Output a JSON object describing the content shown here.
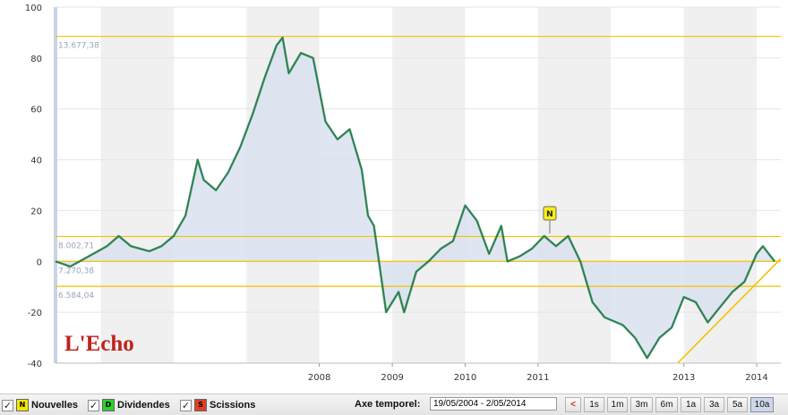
{
  "chart_data": {
    "type": "area",
    "y_ticks": [
      "100",
      "80",
      "60",
      "40",
      "20",
      "0",
      "-20",
      "-40"
    ],
    "ylim": [
      -40,
      100
    ],
    "x_ticks": [
      "2008",
      "2009",
      "2010",
      "2011",
      "2013",
      "2014"
    ],
    "reference_lines": [
      {
        "value": 88.5,
        "label": "13.677,38"
      },
      {
        "value": 9.8,
        "label": "8.002,71"
      },
      {
        "value": 0,
        "label": "7.270,38"
      },
      {
        "value": -9.8,
        "label": "6.584,04"
      }
    ],
    "series": [
      {
        "points": [
          [
            "2004-05-19",
            0
          ],
          [
            "2004-08",
            -2
          ],
          [
            "2004-11",
            2
          ],
          [
            "2005-02",
            6
          ],
          [
            "2005-04",
            10
          ],
          [
            "2005-06",
            6
          ],
          [
            "2005-09",
            4
          ],
          [
            "2005-11",
            6
          ],
          [
            "2006-01",
            10
          ],
          [
            "2006-03",
            18
          ],
          [
            "2006-05",
            40
          ],
          [
            "2006-06",
            32
          ],
          [
            "2006-08",
            28
          ],
          [
            "2006-10",
            35
          ],
          [
            "2006-12",
            45
          ],
          [
            "2007-02",
            58
          ],
          [
            "2007-04",
            72
          ],
          [
            "2007-06",
            85
          ],
          [
            "2007-07",
            88
          ],
          [
            "2007-08",
            74
          ],
          [
            "2007-10",
            82
          ],
          [
            "2007-12",
            80
          ],
          [
            "2008-02",
            55
          ],
          [
            "2008-04",
            48
          ],
          [
            "2008-06",
            52
          ],
          [
            "2008-08",
            36
          ],
          [
            "2008-09",
            18
          ],
          [
            "2008-10",
            14
          ],
          [
            "2008-12",
            -20
          ],
          [
            "2009-02",
            -12
          ],
          [
            "2009-03",
            -20
          ],
          [
            "2009-05",
            -4
          ],
          [
            "2009-07",
            0
          ],
          [
            "2009-09",
            5
          ],
          [
            "2009-11",
            8
          ],
          [
            "2010-01",
            22
          ],
          [
            "2010-03",
            16
          ],
          [
            "2010-05",
            3
          ],
          [
            "2010-07",
            14
          ],
          [
            "2010-08",
            0
          ],
          [
            "2010-10",
            2
          ],
          [
            "2010-12",
            5
          ],
          [
            "2011-02",
            10
          ],
          [
            "2011-04",
            6
          ],
          [
            "2011-06",
            10
          ],
          [
            "2011-08",
            0
          ],
          [
            "2011-10",
            -16
          ],
          [
            "2011-12",
            -22
          ],
          [
            "2012-03",
            -25
          ],
          [
            "2012-05",
            -30
          ],
          [
            "2012-07",
            -38
          ],
          [
            "2012-09",
            -30
          ],
          [
            "2012-11",
            -26
          ],
          [
            "2013-01",
            -14
          ],
          [
            "2013-03",
            -16
          ],
          [
            "2013-05",
            -24
          ],
          [
            "2013-07",
            -18
          ],
          [
            "2013-09",
            -12
          ],
          [
            "2013-11",
            -8
          ],
          [
            "2014-01",
            3
          ],
          [
            "2014-02",
            6
          ],
          [
            "2014-04",
            0
          ]
        ]
      }
    ],
    "trend_line": [
      [
        "2012-12",
        -40
      ],
      [
        "2014-05",
        1
      ]
    ],
    "news_marker": {
      "label": "N",
      "x": "2011-03",
      "y": 11
    }
  },
  "logo": "L'Echo",
  "toolbar": {
    "checkboxes": [
      {
        "check": "✓",
        "badge": "N",
        "badge_color": "#f3e600",
        "label": "Nouvelles"
      },
      {
        "check": "✓",
        "badge": "D",
        "badge_color": "#2fd02f",
        "label": "Dividendes"
      },
      {
        "check": "✓",
        "badge": "S",
        "badge_color": "#e04020",
        "label": "Scissions"
      }
    ],
    "axe_label": "Axe temporel:",
    "period_value": "19/05/2004 - 2/05/2014",
    "prev_label": "<",
    "ranges": [
      "1s",
      "1m",
      "3m",
      "6m",
      "1a",
      "3a",
      "5a",
      "10a"
    ],
    "active_range": "10a"
  },
  "colors": {
    "line": "#1f8a2a",
    "line_highlight": "#2b4fa8",
    "fill": "#dbe2ee",
    "ref_line": "#f2c200",
    "trend": "#f2c200",
    "band": "#f0f0f0",
    "logo": "#c0221c"
  }
}
